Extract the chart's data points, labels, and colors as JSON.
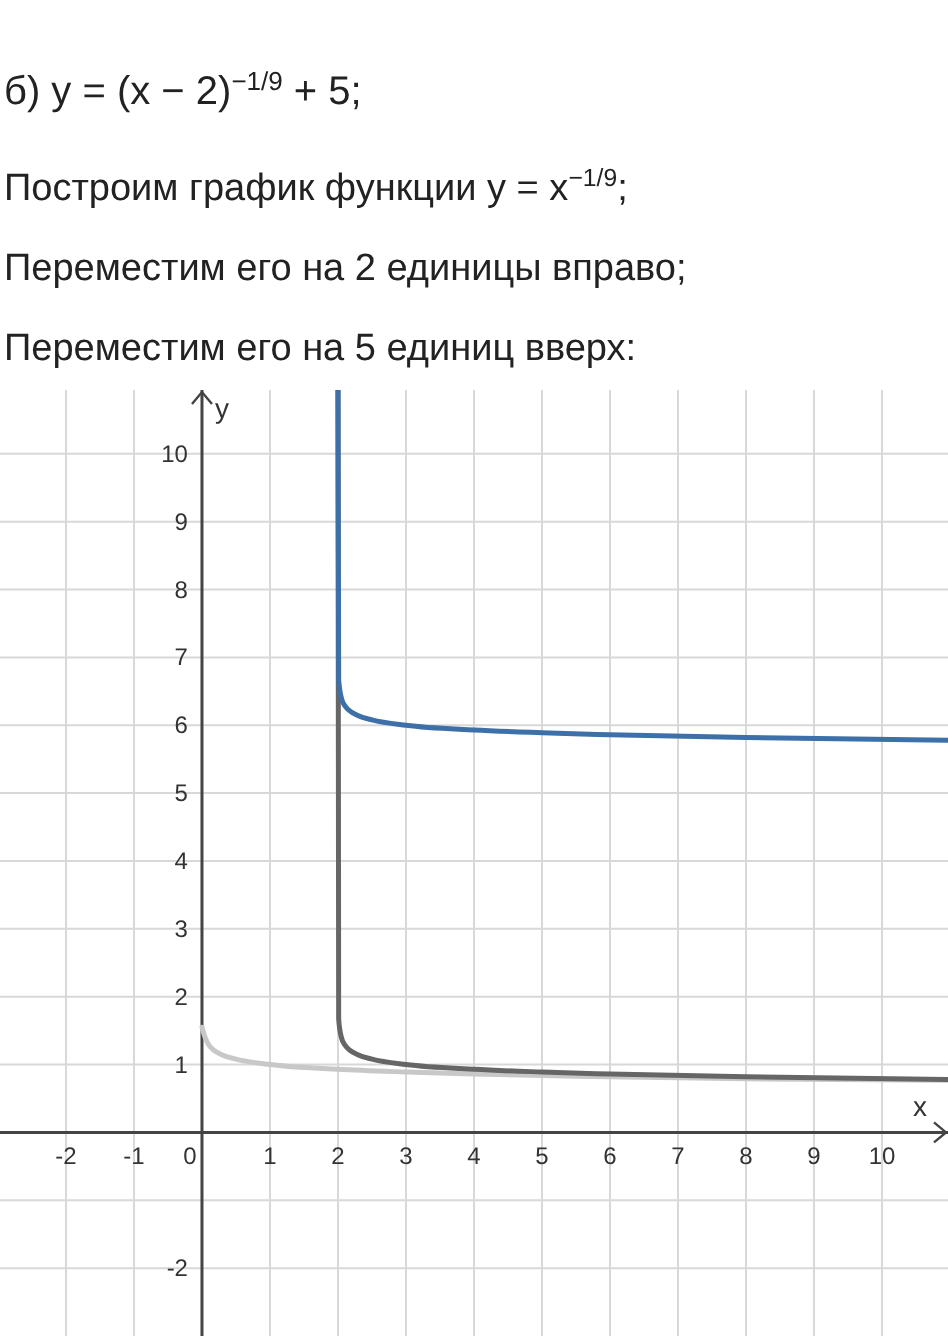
{
  "chart_data": {
    "type": "line",
    "title": "б) y = (x − 2)$^{−1/9}$ + 5;",
    "annotations": [
      "Построим график функции y = x$^{−1/9}$;",
      "Переместим его на 2 единицы вправо;",
      "Переместим его на 5 единиц вверх:"
    ],
    "xlabel": "x",
    "ylabel": "y",
    "xlim": [
      -2.97,
      10.97
    ],
    "ylim": [
      -3,
      10.94
    ],
    "xticks": [
      -2,
      -1,
      0,
      1,
      2,
      3,
      4,
      5,
      6,
      7,
      8,
      9,
      10
    ],
    "yticks": [
      -2,
      {
        "value": -1,
        "label": null
      },
      1,
      2,
      3,
      4,
      5,
      6,
      7,
      8,
      9,
      10
    ],
    "grid": true,
    "line_style": "solid",
    "series": [
      {
        "color": "#c8c8c8",
        "x": [
          0,
          0.05,
          0.1,
          0.3,
          0.5,
          1,
          2,
          3,
          4,
          6,
          8,
          10.97
        ],
        "values": [
          1.55,
          1.39,
          1.29,
          1.14,
          1.08,
          1,
          0.93,
          0.89,
          0.86,
          0.82,
          0.79,
          0.77
        ]
      },
      {
        "color": "#666666",
        "x": [
          2,
          2.01,
          2.05,
          2.1,
          2.3,
          2.5,
          3,
          4,
          5,
          6,
          8,
          10.97
        ],
        "values": [
          10.94,
          1.67,
          1.4,
          1.29,
          1.14,
          1.08,
          1,
          0.93,
          0.89,
          0.86,
          0.82,
          0.78
        ]
      },
      {
        "color": "#3d6fa8",
        "x": [
          2,
          2.01,
          2.05,
          2.1,
          2.3,
          2.5,
          3,
          4,
          5,
          6,
          8,
          10.97
        ],
        "values": [
          10.94,
          6.67,
          6.4,
          6.29,
          6.14,
          6.08,
          6,
          5.93,
          5.89,
          5.86,
          5.82,
          5.78
        ]
      }
    ]
  }
}
